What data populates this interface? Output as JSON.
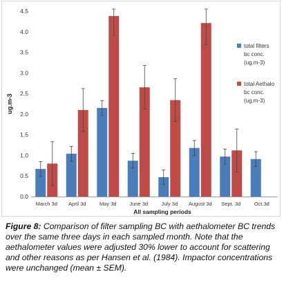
{
  "chart_data": {
    "type": "bar",
    "categories": [
      "March 3d",
      "April 3d",
      "May 3d",
      "June 3d",
      "July 3d",
      "August 3d",
      "Sept. 3d",
      "Oct.3d"
    ],
    "series": [
      {
        "name_lines": [
          "total filters",
          "bc conc.",
          "(ug.m-3)"
        ],
        "color": "#4a7ebb",
        "values": [
          0.67,
          1.04,
          2.15,
          0.87,
          0.47,
          1.18,
          0.97,
          0.91
        ],
        "errors": [
          0.18,
          0.18,
          0.18,
          0.18,
          0.18,
          0.18,
          0.18,
          0.18
        ]
      },
      {
        "name_lines": [
          "total Aethalo",
          "bc conc.",
          "(ug.m-3)"
        ],
        "color": "#be4b48",
        "values": [
          0.8,
          2.1,
          4.38,
          2.65,
          2.34,
          4.21,
          1.12,
          null
        ],
        "errors": [
          0.53,
          0.52,
          0.47,
          0.53,
          0.52,
          0.52,
          0.52,
          null
        ]
      }
    ],
    "xlabel": "All sampling  periods",
    "ylabel": "ug.m-3",
    "ylim": [
      0,
      4.5
    ],
    "yticks": [
      "0.0",
      "0.5",
      "1.0",
      "1.5",
      "2.0",
      "2.5",
      "3.0",
      "3.5",
      "4.0",
      "4.5"
    ],
    "grid": false,
    "legend_position": "right"
  },
  "caption": {
    "label": "Figure 8:",
    "text": " Comparison of filter sampling BC with aethalometer BC trends over the same three days in each sampled month. Note that the aethalometer values were adjusted 30% lower to account for scattering and other reasons as per Hansen et al. (1984). Impactor concentrations were unchanged (mean ± SEM)."
  }
}
